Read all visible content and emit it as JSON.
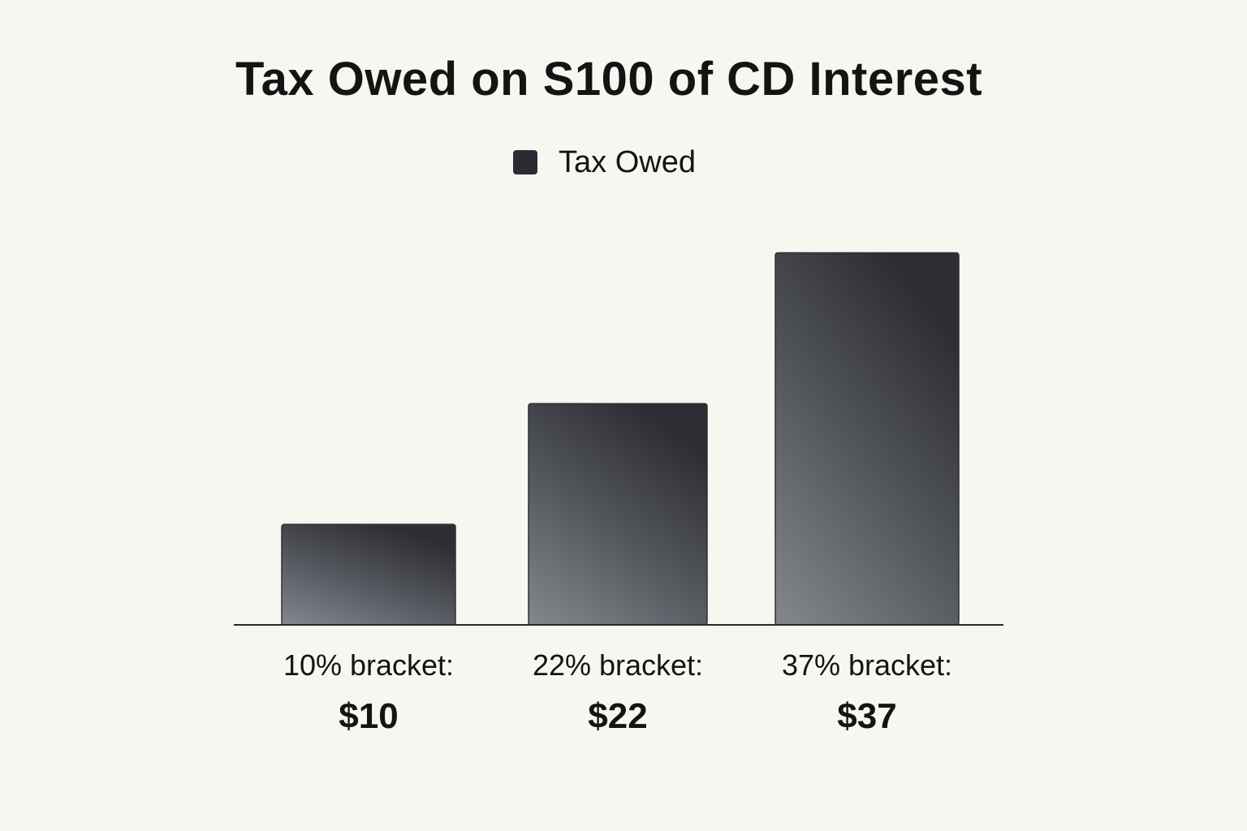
{
  "chart_data": {
    "type": "bar",
    "title": "Tax Owed on S100 of CD Interest",
    "legend": {
      "entries": [
        "Tax Owed"
      ],
      "placement": "top-center"
    },
    "categories": [
      "10% bracket:",
      "22% bracket:",
      "37% bracket:"
    ],
    "series": [
      {
        "name": "Tax Owed",
        "values": [
          10,
          22,
          37
        ]
      }
    ],
    "value_labels": [
      "$10",
      "$22",
      "$37"
    ],
    "xlabel": "",
    "ylabel": "",
    "ylim": [
      0,
      41
    ],
    "grid": false,
    "colors": {
      "bar_light": "#7e8087",
      "bar_dark": "#2a2c31",
      "baseline": "#2a2a2a"
    }
  }
}
